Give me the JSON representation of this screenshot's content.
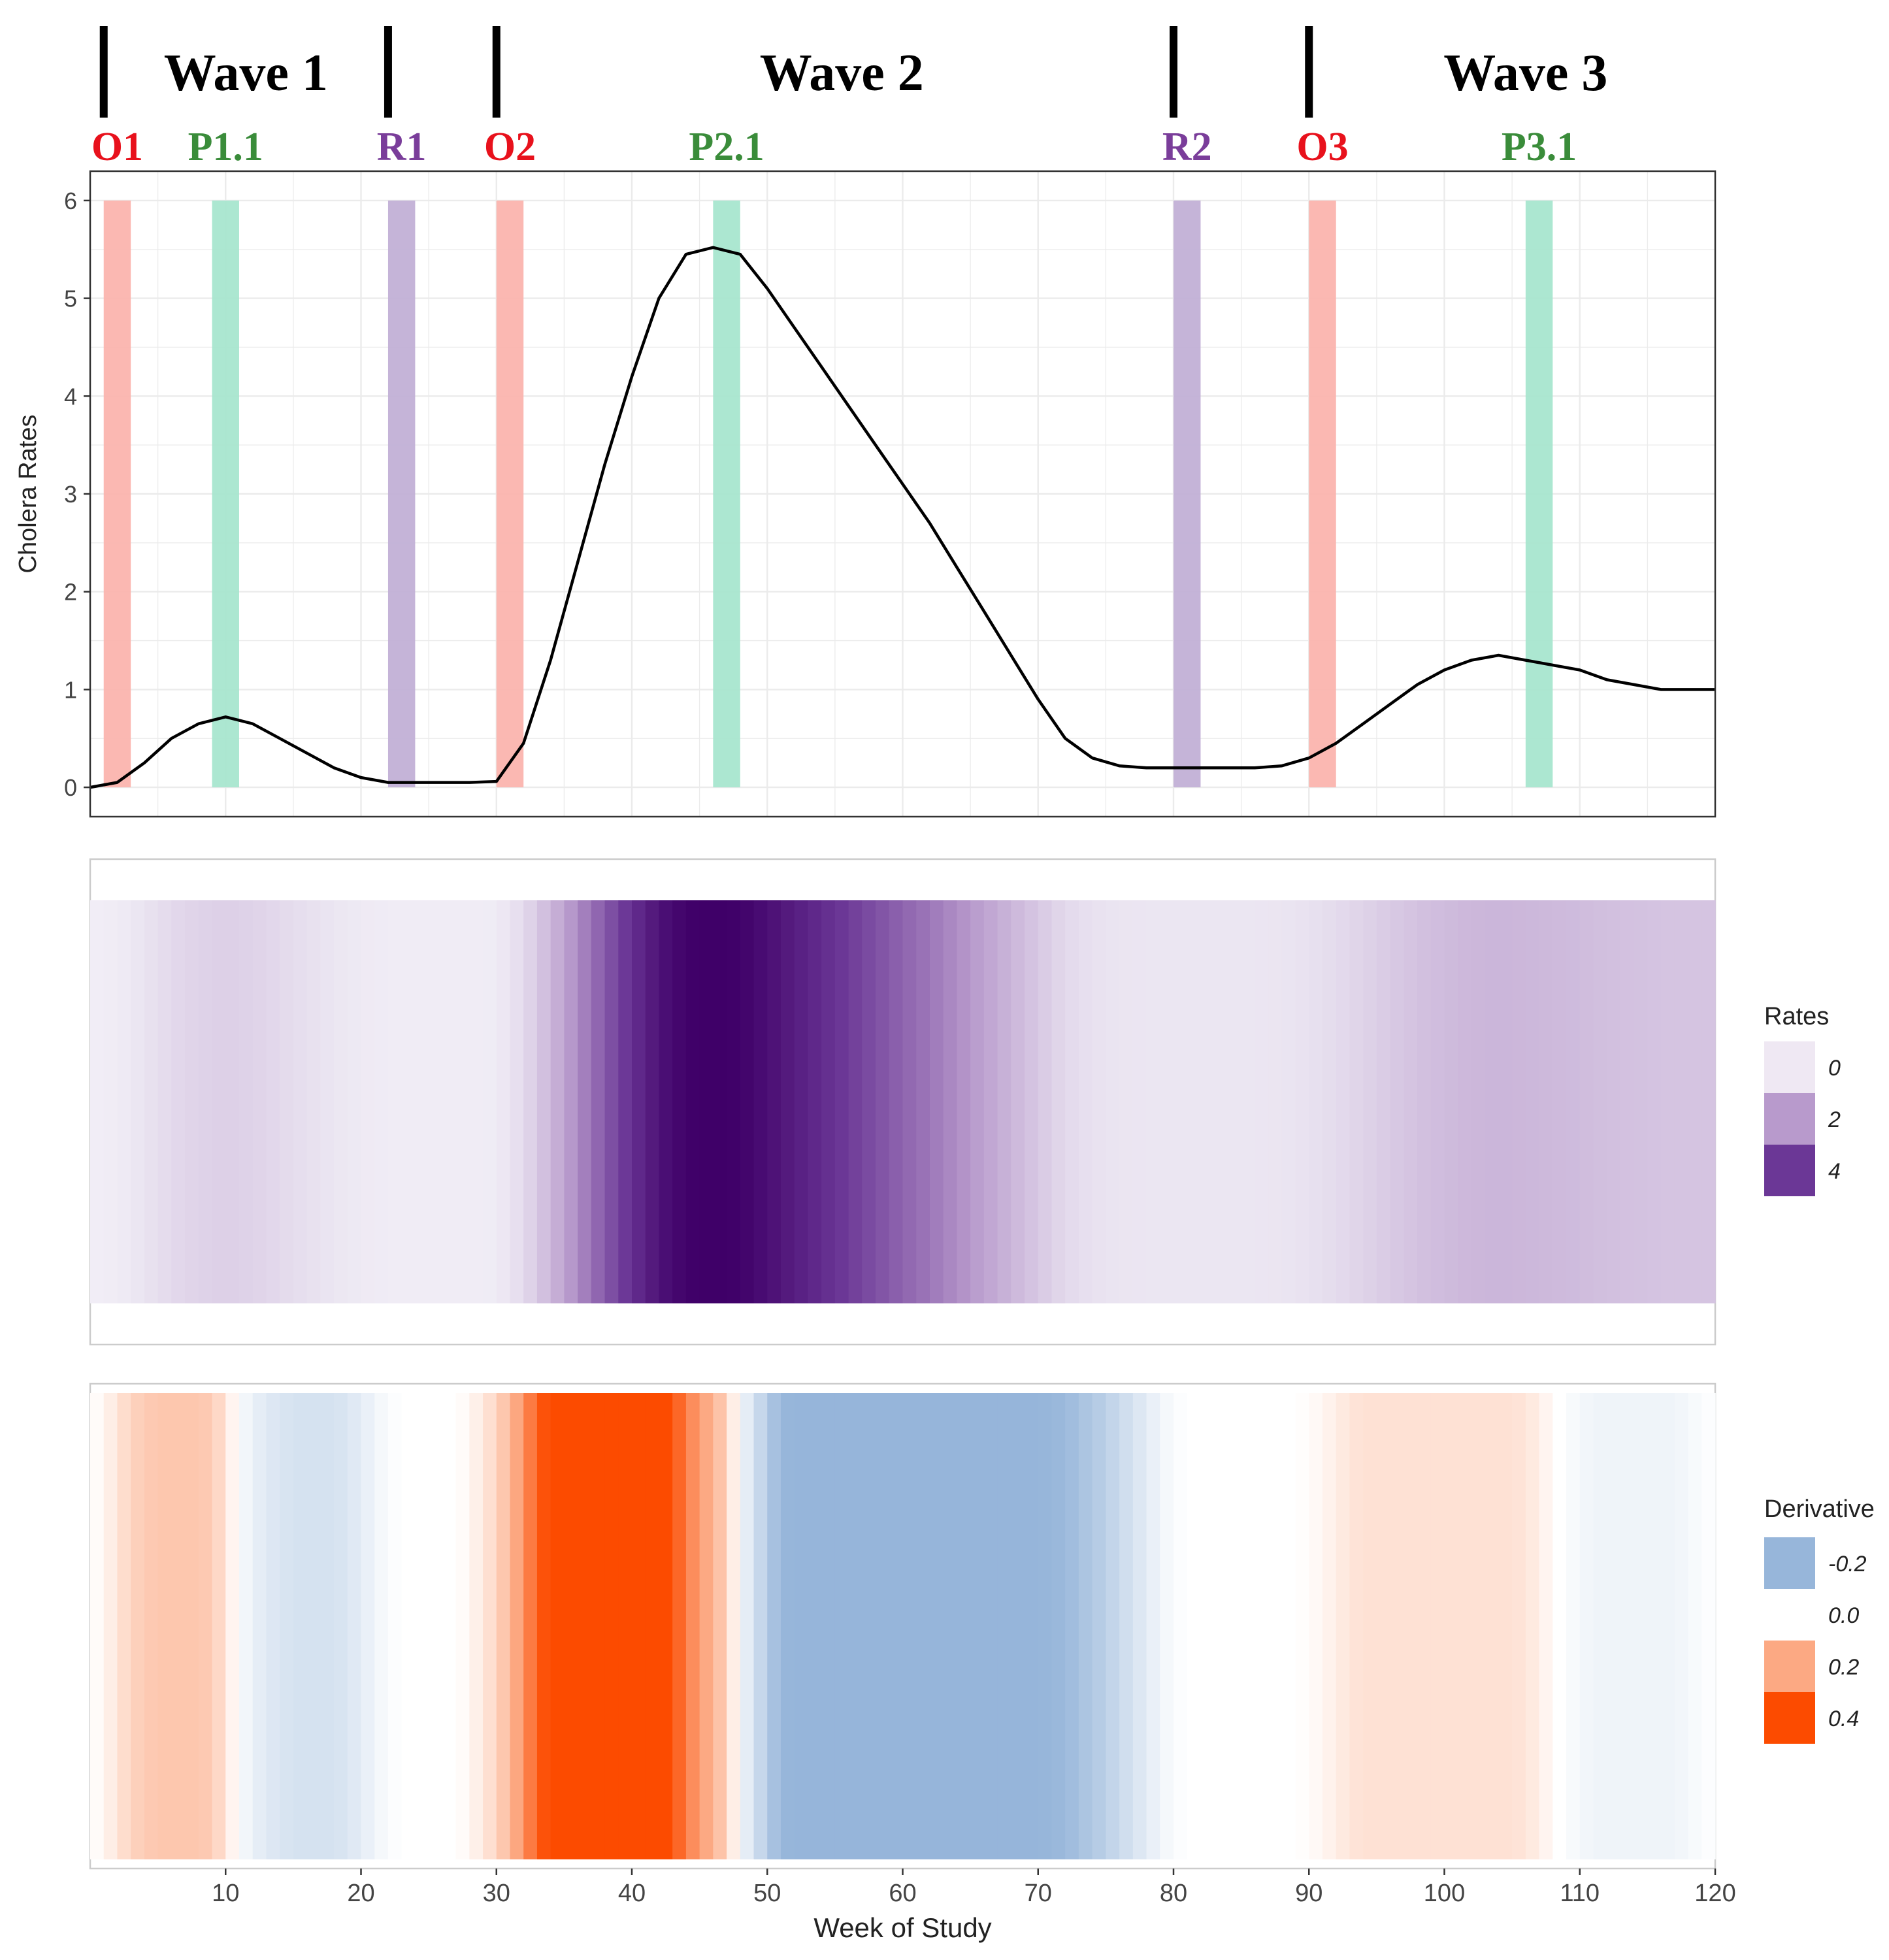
{
  "chart_data": [
    {
      "type": "line",
      "name": "cholera-rates-curve",
      "ylabel": "Cholera Rates",
      "xlim": [
        0,
        120
      ],
      "ylim": [
        -0.3,
        6.3
      ],
      "y_ticks": [
        "0",
        "1",
        "2",
        "3",
        "4",
        "5",
        "6"
      ],
      "grid": true,
      "series": [
        {
          "x": [
            0,
            2,
            4,
            6,
            8,
            10,
            12,
            14,
            16,
            18,
            20,
            22,
            24,
            26,
            28,
            30,
            32,
            34,
            36,
            38,
            40,
            42,
            44,
            46,
            48,
            50,
            52,
            54,
            56,
            58,
            60,
            62,
            64,
            66,
            68,
            70,
            72,
            74,
            76,
            78,
            80,
            82,
            84,
            86,
            88,
            90,
            92,
            94,
            96,
            98,
            100,
            102,
            104,
            106,
            108,
            110,
            112,
            114,
            116,
            118,
            120
          ],
          "y": [
            0.0,
            0.05,
            0.25,
            0.5,
            0.65,
            0.72,
            0.65,
            0.5,
            0.35,
            0.2,
            0.1,
            0.05,
            0.05,
            0.05,
            0.05,
            0.06,
            0.45,
            1.3,
            2.3,
            3.3,
            4.2,
            5.0,
            5.45,
            5.52,
            5.45,
            5.1,
            4.7,
            4.3,
            3.9,
            3.5,
            3.1,
            2.7,
            2.25,
            1.8,
            1.35,
            0.9,
            0.5,
            0.3,
            0.22,
            0.2,
            0.2,
            0.2,
            0.2,
            0.2,
            0.22,
            0.3,
            0.45,
            0.65,
            0.85,
            1.05,
            1.2,
            1.3,
            1.35,
            1.3,
            1.25,
            1.2,
            1.1,
            1.05,
            1.0,
            1.0,
            1.0
          ]
        }
      ],
      "phase_bands": [
        {
          "label": "O1",
          "x": 1,
          "color": "#fbb4ae"
        },
        {
          "label": "P1.1",
          "x": 9,
          "color": "#a8e6cf"
        },
        {
          "label": "R1",
          "x": 22,
          "color": "#c2b0d6"
        },
        {
          "label": "O2",
          "x": 30,
          "color": "#fbb4ae"
        },
        {
          "label": "P2.1",
          "x": 46,
          "color": "#a8e6cf"
        },
        {
          "label": "R2",
          "x": 80,
          "color": "#c2b0d6"
        },
        {
          "label": "O3",
          "x": 90,
          "color": "#fbb4ae"
        },
        {
          "label": "P3.1",
          "x": 106,
          "color": "#a8e6cf"
        }
      ],
      "phase_label_colors": {
        "O": "#e8111c",
        "P": "#3a8c3a",
        "R": "#7a3d9a"
      },
      "wave_dividers_x": [
        1,
        22,
        30,
        80,
        90
      ],
      "waves": [
        {
          "label": "Wave 1",
          "x": 11.5
        },
        {
          "label": "Wave 2",
          "x": 55.5
        },
        {
          "label": "Wave 3",
          "x": 106
        }
      ]
    },
    {
      "type": "heatmap",
      "name": "rates-heat-strip",
      "legend_title": "Rates",
      "legend_entries": [
        {
          "label": "0",
          "color": "#efe8f3"
        },
        {
          "label": "2",
          "color": "#b89acc"
        },
        {
          "label": "4",
          "color": "#6b3796"
        }
      ],
      "colormap_stops": [
        {
          "v": 0,
          "color": "#f1eef6"
        },
        {
          "v": 2,
          "color": "#b89acc"
        },
        {
          "v": 4,
          "color": "#6b3796"
        },
        {
          "v": 5.5,
          "color": "#3f0068"
        }
      ],
      "source": "cholera-rates-curve"
    },
    {
      "type": "heatmap",
      "name": "derivative-heat-strip",
      "legend_title": "Derivative",
      "legend_entries": [
        {
          "label": "-0.2",
          "color": "#97b6da"
        },
        {
          "label": "0.0",
          "color": "#ffffff"
        },
        {
          "label": "0.2",
          "color": "#fca983"
        },
        {
          "label": "0.4",
          "color": "#fc4b00"
        }
      ],
      "xlabel": "Week of Study",
      "x_ticks": [
        "10",
        "20",
        "30",
        "40",
        "50",
        "60",
        "70",
        "80",
        "90",
        "100",
        "110",
        "120"
      ],
      "colormap_stops": [
        {
          "v": -0.3,
          "color": "#8fb0d8"
        },
        {
          "v": -0.2,
          "color": "#97b6da"
        },
        {
          "v": 0.0,
          "color": "#ffffff"
        },
        {
          "v": 0.2,
          "color": "#fca983"
        },
        {
          "v": 0.4,
          "color": "#fc4b00"
        }
      ],
      "derivative": {
        "x": [
          0,
          1,
          2,
          3,
          4,
          5,
          6,
          7,
          8,
          9,
          10,
          11,
          12,
          13,
          14,
          15,
          16,
          17,
          18,
          19,
          20,
          21,
          22,
          23,
          24,
          25,
          26,
          27,
          28,
          29,
          30,
          31,
          32,
          33,
          34,
          35,
          36,
          37,
          38,
          39,
          40,
          41,
          42,
          43,
          44,
          45,
          46,
          47,
          48,
          49,
          50,
          51,
          52,
          53,
          54,
          55,
          56,
          57,
          58,
          59,
          60,
          61,
          62,
          63,
          64,
          65,
          66,
          67,
          68,
          69,
          70,
          71,
          72,
          73,
          74,
          75,
          76,
          77,
          78,
          79,
          80,
          81,
          82,
          83,
          84,
          85,
          86,
          87,
          88,
          89,
          90,
          91,
          92,
          93,
          94,
          95,
          96,
          97,
          98,
          99,
          100,
          101,
          102,
          103,
          104,
          105,
          106,
          107,
          108,
          109,
          110,
          111,
          112,
          113,
          114,
          115,
          116,
          117,
          118,
          119,
          120
        ],
        "y": [
          0.0,
          0.02,
          0.06,
          0.1,
          0.12,
          0.13,
          0.13,
          0.13,
          0.13,
          0.12,
          0.06,
          -0.01,
          -0.04,
          -0.06,
          -0.07,
          -0.08,
          -0.08,
          -0.08,
          -0.08,
          -0.07,
          -0.05,
          -0.03,
          -0.01,
          0.0,
          0.0,
          0.0,
          0.0,
          0.0,
          0.02,
          0.05,
          0.1,
          0.16,
          0.25,
          0.35,
          0.42,
          0.45,
          0.45,
          0.45,
          0.45,
          0.45,
          0.45,
          0.45,
          0.43,
          0.38,
          0.3,
          0.22,
          0.18,
          0.1,
          -0.02,
          -0.08,
          -0.14,
          -0.2,
          -0.21,
          -0.21,
          -0.21,
          -0.21,
          -0.21,
          -0.21,
          -0.21,
          -0.21,
          -0.21,
          -0.21,
          -0.21,
          -0.21,
          -0.21,
          -0.21,
          -0.21,
          -0.21,
          -0.21,
          -0.21,
          -0.21,
          -0.2,
          -0.19,
          -0.17,
          -0.15,
          -0.13,
          -0.1,
          -0.08,
          -0.05,
          -0.03,
          -0.01,
          0.0,
          0.0,
          0.0,
          0.0,
          0.0,
          0.0,
          0.0,
          0.0,
          0.0,
          0.01,
          0.02,
          0.04,
          0.06,
          0.07,
          0.07,
          0.07,
          0.07,
          0.07,
          0.07,
          0.07,
          0.07,
          0.07,
          0.07,
          0.07,
          0.07,
          0.06,
          0.04,
          0.01,
          -0.01,
          -0.02,
          -0.03,
          -0.03,
          -0.03,
          -0.03,
          -0.03,
          -0.03,
          -0.03,
          -0.02,
          -0.01,
          0.0
        ]
      }
    }
  ]
}
